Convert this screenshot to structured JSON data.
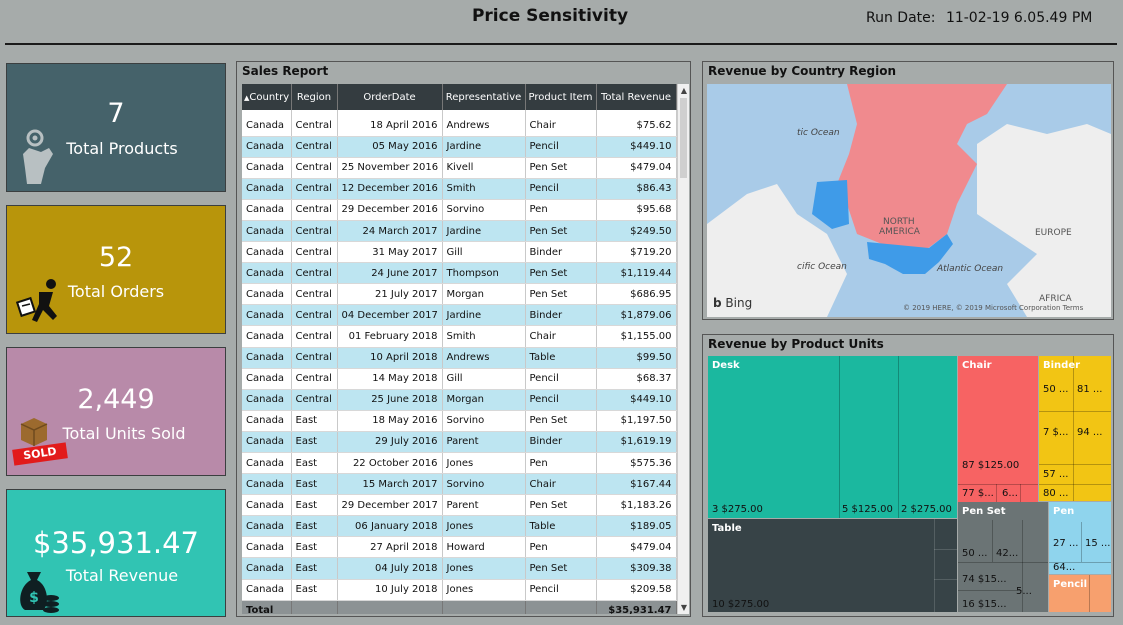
{
  "header": {
    "title": "Price Sensitivity",
    "run_date_label": "Run Date:",
    "run_date_value": "11-02-19 6.05.49 PM"
  },
  "kpis": {
    "products": {
      "value": "7",
      "label": "Total Products",
      "icon": "hand-gear-icon"
    },
    "orders": {
      "value": "52",
      "label": "Total Orders",
      "icon": "running-man-icon"
    },
    "units": {
      "value": "2,449",
      "label": "Total Units Sold",
      "icon": "sold-box-icon",
      "badge": "SOLD"
    },
    "revenue": {
      "value": "$35,931.47",
      "label": "Total Revenue",
      "icon": "money-bag-icon"
    }
  },
  "sales_report": {
    "title": "Sales Report",
    "columns": [
      "Country",
      "Region",
      "OrderDate",
      "Representative",
      "Product Item",
      "Total Revenue"
    ],
    "rows": [
      [
        "Canada",
        "Central",
        "18 April 2016",
        "Andrews",
        "Chair",
        "$75.62"
      ],
      [
        "Canada",
        "Central",
        "05 May 2016",
        "Jardine",
        "Pencil",
        "$449.10"
      ],
      [
        "Canada",
        "Central",
        "25 November 2016",
        "Kivell",
        "Pen Set",
        "$479.04"
      ],
      [
        "Canada",
        "Central",
        "12 December 2016",
        "Smith",
        "Pencil",
        "$86.43"
      ],
      [
        "Canada",
        "Central",
        "29 December 2016",
        "Sorvino",
        "Pen",
        "$95.68"
      ],
      [
        "Canada",
        "Central",
        "24 March 2017",
        "Jardine",
        "Pen Set",
        "$249.50"
      ],
      [
        "Canada",
        "Central",
        "31 May 2017",
        "Gill",
        "Binder",
        "$719.20"
      ],
      [
        "Canada",
        "Central",
        "24 June 2017",
        "Thompson",
        "Pen Set",
        "$1,119.44"
      ],
      [
        "Canada",
        "Central",
        "21 July 2017",
        "Morgan",
        "Pen Set",
        "$686.95"
      ],
      [
        "Canada",
        "Central",
        "04 December 2017",
        "Jardine",
        "Binder",
        "$1,879.06"
      ],
      [
        "Canada",
        "Central",
        "01 February 2018",
        "Smith",
        "Chair",
        "$1,155.00"
      ],
      [
        "Canada",
        "Central",
        "10 April 2018",
        "Andrews",
        "Table",
        "$99.50"
      ],
      [
        "Canada",
        "Central",
        "14 May 2018",
        "Gill",
        "Pencil",
        "$68.37"
      ],
      [
        "Canada",
        "Central",
        "25 June 2018",
        "Morgan",
        "Pencil",
        "$449.10"
      ],
      [
        "Canada",
        "East",
        "18 May 2016",
        "Sorvino",
        "Pen Set",
        "$1,197.50"
      ],
      [
        "Canada",
        "East",
        "29 July 2016",
        "Parent",
        "Binder",
        "$1,619.19"
      ],
      [
        "Canada",
        "East",
        "22 October 2016",
        "Jones",
        "Pen",
        "$575.36"
      ],
      [
        "Canada",
        "East",
        "15 March 2017",
        "Sorvino",
        "Chair",
        "$167.44"
      ],
      [
        "Canada",
        "East",
        "29 December 2017",
        "Parent",
        "Pen Set",
        "$1,183.26"
      ],
      [
        "Canada",
        "East",
        "06 January 2018",
        "Jones",
        "Table",
        "$189.05"
      ],
      [
        "Canada",
        "East",
        "27 April 2018",
        "Howard",
        "Pen",
        "$479.04"
      ],
      [
        "Canada",
        "East",
        "04 July 2018",
        "Jones",
        "Pen Set",
        "$309.38"
      ],
      [
        "Canada",
        "East",
        "10 July 2018",
        "Jones",
        "Pencil",
        "$209.58"
      ]
    ],
    "total_label": "Total",
    "total_value": "$35,931.47",
    "sort_icon": "sort-ascending-icon"
  },
  "map": {
    "title": "Revenue by Country Region",
    "labels": {
      "atlantic_top": "tic Ocean",
      "pacific": "cific Ocean",
      "atlantic": "Atlantic Ocean",
      "north_america_1": "NORTH",
      "north_america_2": "AMERICA",
      "europe": "EUROPE",
      "africa": "AFRICA"
    },
    "brand": "Bing",
    "copyright": "© 2019 HERE, © 2019 Microsoft Corporation Terms",
    "colors": {
      "canada": "#f08a8e",
      "usa": "#3f9be8",
      "water": "#a9cbe8",
      "land": "#eeeeee"
    }
  },
  "treemap": {
    "title": "Revenue by Product Units",
    "groups": [
      {
        "name": "Desk",
        "color": "#1bb89f",
        "labels": [
          "3 $275.00",
          "5 $125.00",
          "2 $275.00"
        ]
      },
      {
        "name": "Chair",
        "color": "#f76363",
        "labels": [
          "87 $125.00",
          "77 $...",
          "6..."
        ]
      },
      {
        "name": "Binder",
        "color": "#f2c514",
        "labels": [
          "50 ...",
          "81 ...",
          "7 $...",
          "94 ...",
          "57 ...",
          "80 ..."
        ]
      },
      {
        "name": "Table",
        "color": "#374347",
        "labels": [
          "10 $275.00"
        ]
      },
      {
        "name": "Pen Set",
        "color": "#6b7475",
        "labels": [
          "50 ...",
          "42...",
          "74 $15...",
          "16 $15...",
          "5..."
        ]
      },
      {
        "name": "Pen",
        "color": "#8fd4ed",
        "labels": [
          "27 ...",
          "15 ...",
          "64..."
        ]
      },
      {
        "name": "Pencil",
        "color": "#f7a06e",
        "labels": []
      }
    ]
  }
}
